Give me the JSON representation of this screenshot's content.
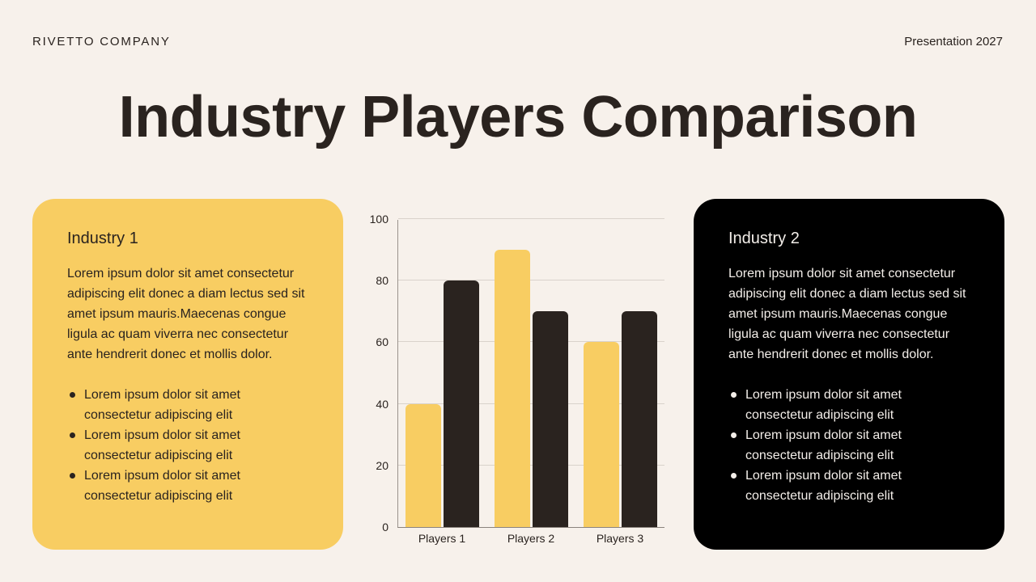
{
  "header": {
    "brand": "RIVETTO COMPANY",
    "deck_label": "Presentation 2027"
  },
  "title": "Industry Players Comparison",
  "colors": {
    "background": "#f7f1eb",
    "accent_yellow": "#f8cd62",
    "dark": "#2a231f",
    "card_dark": "#000000"
  },
  "cards": [
    {
      "heading": "Industry 1",
      "body": "Lorem ipsum dolor sit amet consectetur adipiscing elit donec a diam lectus sed sit amet ipsum mauris.Maecenas congue ligula ac quam viverra nec consectetur ante hendrerit donec et mollis dolor.",
      "bullets": [
        "Lorem ipsum dolor sit amet consectetur adipiscing elit",
        "Lorem ipsum dolor sit amet consectetur adipiscing elit",
        "Lorem ipsum dolor sit amet consectetur adipiscing elit"
      ]
    },
    {
      "heading": "Industry 2",
      "body": "Lorem ipsum dolor sit amet consectetur adipiscing elit donec a diam lectus sed sit amet ipsum mauris.Maecenas congue ligula ac quam viverra nec consectetur ante hendrerit donec et mollis dolor.",
      "bullets": [
        "Lorem ipsum dolor sit amet consectetur adipiscing elit",
        "Lorem ipsum dolor sit amet consectetur adipiscing elit",
        "Lorem ipsum dolor sit amet consectetur adipiscing elit"
      ]
    }
  ],
  "chart_data": {
    "type": "bar",
    "title": "",
    "xlabel": "",
    "ylabel": "",
    "categories": [
      "Players 1",
      "Players 2",
      "Players 3"
    ],
    "series": [
      {
        "name": "Industry 1",
        "color": "#f8cd62",
        "values": [
          40,
          90,
          60
        ]
      },
      {
        "name": "Industry 2",
        "color": "#2a231f",
        "values": [
          80,
          70,
          70
        ]
      }
    ],
    "ylim": [
      0,
      100
    ],
    "yticks": [
      "0",
      "20",
      "40",
      "60",
      "80",
      "100"
    ],
    "grid": true,
    "legend": "none"
  }
}
